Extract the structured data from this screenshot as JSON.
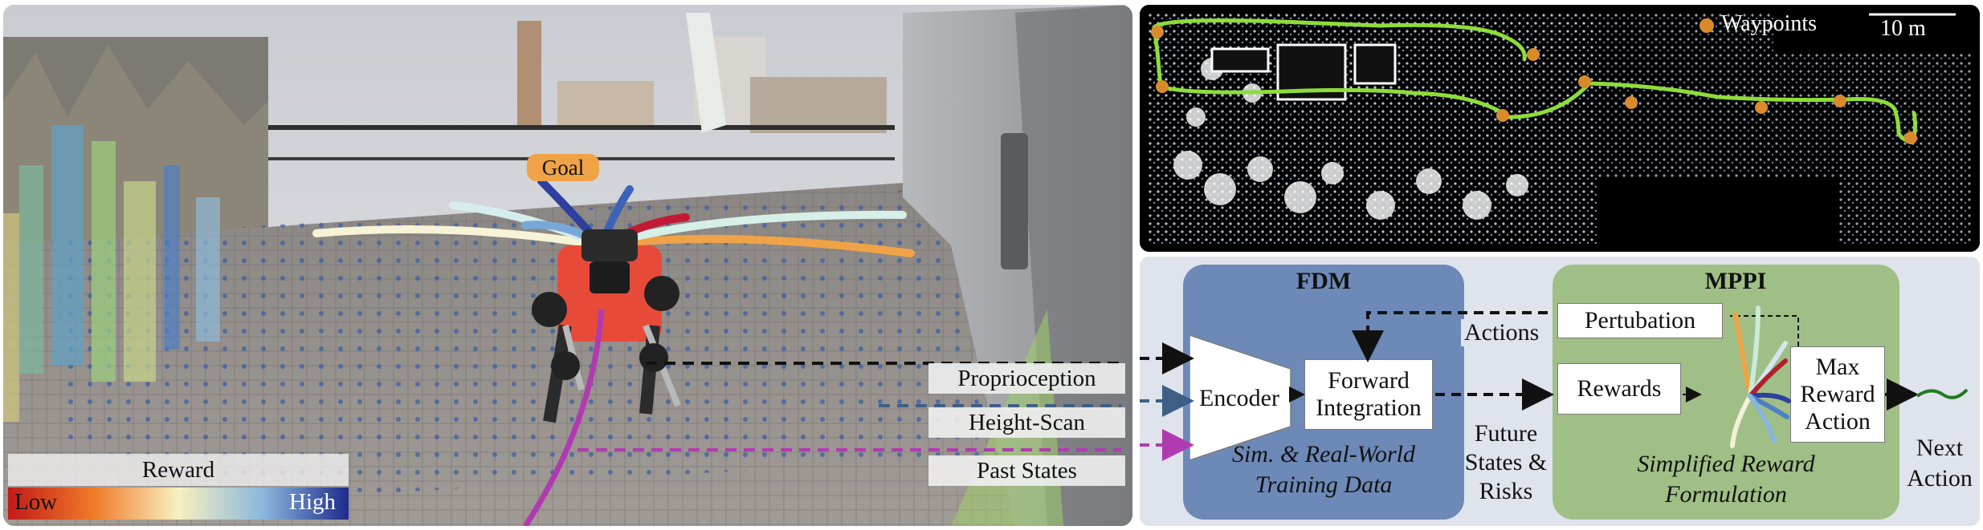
{
  "photo": {
    "goal_label": "Goal",
    "inputs": [
      "Proprioception",
      "Height-Scan",
      "Past States"
    ],
    "legend": {
      "title": "Reward",
      "low": "Low",
      "high": "High"
    }
  },
  "map": {
    "legend_label": "Waypoints",
    "scale_label": "10 m"
  },
  "diagram": {
    "fdm": {
      "title": "FDM",
      "encoder": "Encoder",
      "forward_line1": "Forward",
      "forward_line2": "Integration",
      "caption_line1": "Sim. & Real-World",
      "caption_line2": "Training Data"
    },
    "actions_label": "Actions",
    "future_line1": "Future",
    "future_line2": "States &",
    "future_line3": "Risks",
    "mppi": {
      "title": "MPPI",
      "pertubation": "Pertubation",
      "rewards": "Rewards",
      "max_line1": "Max",
      "max_line2": "Reward",
      "max_line3": "Action",
      "caption_line1": "Simplified Reward",
      "caption_line2": "Formulation"
    },
    "next_line1": "Next",
    "next_line2": "Action"
  },
  "colors": {
    "fdm_box": "#6d89b7",
    "mppi_box": "#9fbf86",
    "waypoint": "#d98b2b",
    "trajectory": "#8fdc3a",
    "magenta": "#b03bb0",
    "steel_blue": "#3d5f86"
  }
}
